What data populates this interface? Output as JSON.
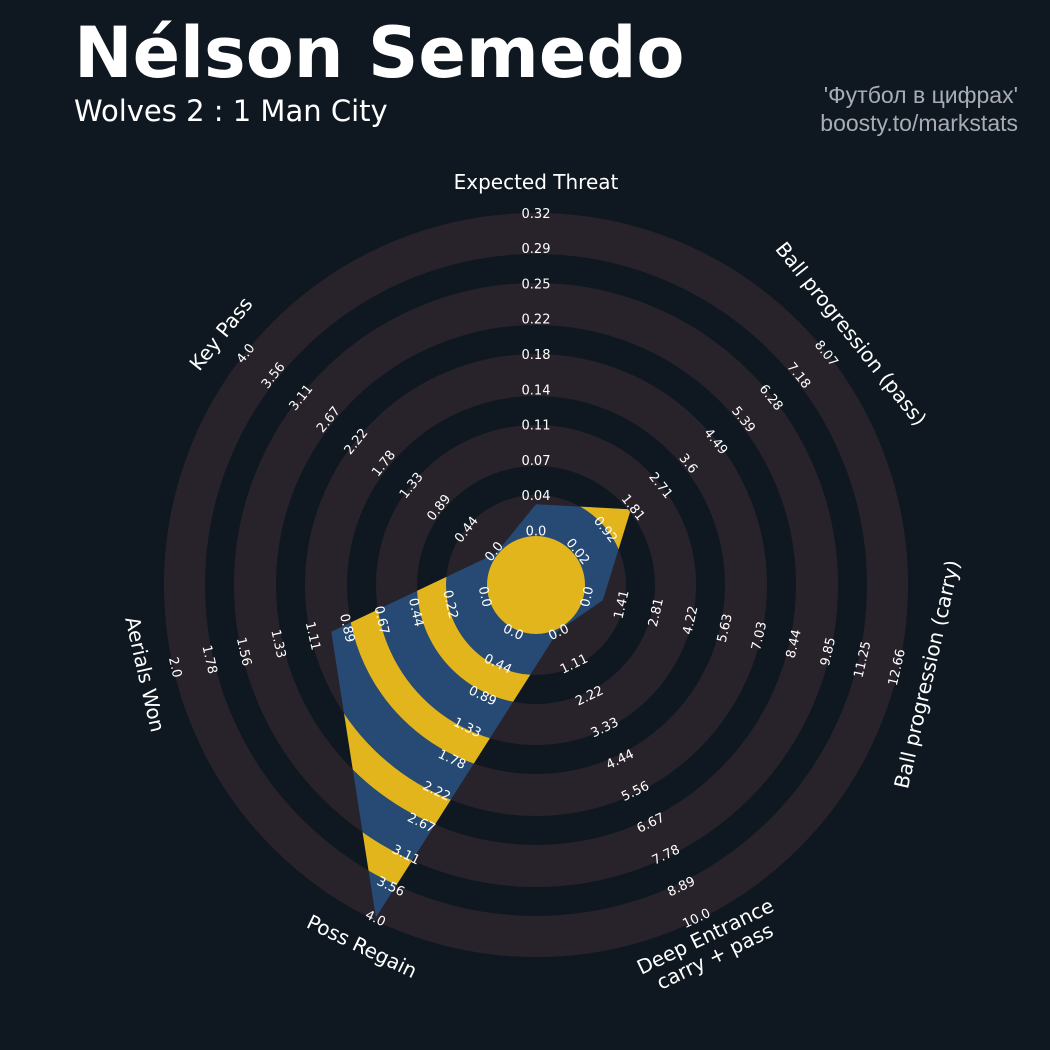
{
  "header": {
    "title": "Nélson Semedo",
    "subtitle": "Wolves 2 : 1 Man City",
    "credit_line1": "'Футбол в цифрах'",
    "credit_line2": "boosty.to/markstats"
  },
  "colors": {
    "background": "#0f1820",
    "ring": "#28232a",
    "polygon": "#264a73",
    "polygon_alt": "#e3b51c",
    "center": "#e3b51c"
  },
  "chart_data": {
    "type": "radar",
    "params": [
      {
        "name": [
          "Expected Threat"
        ],
        "ticks": [
          "0.0",
          "0.04",
          "0.07",
          "0.11",
          "0.14",
          "0.18",
          "0.22",
          "0.25",
          "0.29",
          "0.32"
        ],
        "min": 0.0,
        "max": 0.32,
        "value": 0.03
      },
      {
        "name": [
          "Ball progression (pass)"
        ],
        "ticks": [
          "0.02",
          "0.92",
          "1.81",
          "2.71",
          "3.6",
          "4.49",
          "5.39",
          "6.28",
          "7.18",
          "8.07"
        ],
        "min": 0.02,
        "max": 8.07,
        "value": 1.8
      },
      {
        "name": [
          "Ball progression (carry)"
        ],
        "ticks": [
          "0.0",
          "1.41",
          "2.81",
          "4.22",
          "5.63",
          "7.03",
          "8.44",
          "9.85",
          "11.25",
          "12.66"
        ],
        "min": 0.0,
        "max": 12.66,
        "value": 0.7
      },
      {
        "name": [
          "Deep Entrance",
          "carry + pass"
        ],
        "ticks": [
          "0.0",
          "1.11",
          "2.22",
          "3.33",
          "4.44",
          "5.56",
          "6.67",
          "7.78",
          "8.89",
          "10.0"
        ],
        "min": 0.0,
        "max": 10.0,
        "value": 0.0
      },
      {
        "name": [
          "Poss Regain"
        ],
        "ticks": [
          "0.0",
          "0.44",
          "0.89",
          "1.33",
          "1.78",
          "2.22",
          "2.67",
          "3.11",
          "3.56",
          "4.0"
        ],
        "min": 0.0,
        "max": 4.0,
        "value": 4.0
      },
      {
        "name": [
          "Aerials Won"
        ],
        "ticks": [
          "0.0",
          "0.22",
          "0.44",
          "0.67",
          "0.89",
          "1.11",
          "1.33",
          "1.56",
          "1.78",
          "2.0"
        ],
        "min": 0.0,
        "max": 2.0,
        "value": 1.0
      },
      {
        "name": [
          "Key Pass"
        ],
        "ticks": [
          "0.0",
          "0.44",
          "0.89",
          "1.33",
          "1.78",
          "2.22",
          "2.67",
          "3.11",
          "3.56",
          "4.0"
        ],
        "min": 0.0,
        "max": 4.0,
        "value": 0.0
      }
    ]
  }
}
